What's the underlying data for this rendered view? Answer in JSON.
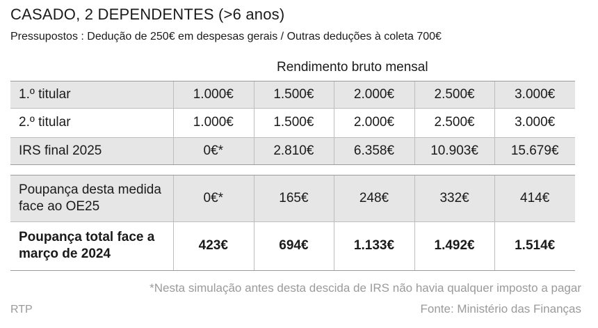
{
  "title": "CASADO, 2 DEPENDENTES (>6 anos)",
  "subtitle": "Pressupostos : Dedução de 250€ em despesas gerais / Outras deduções à coleta 700€",
  "table": {
    "group_header": "Rendimento bruto mensal",
    "rows": [
      {
        "label": "1.º titular",
        "values": [
          "1.000€",
          "1.500€",
          "2.000€",
          "2.500€",
          "3.000€"
        ]
      },
      {
        "label": "2.º titular",
        "values": [
          "1.000€",
          "1.500€",
          "2.000€",
          "2.500€",
          "3.000€"
        ]
      },
      {
        "label": "IRS final 2025",
        "values": [
          "0€*",
          "2.810€",
          "6.358€",
          "10.903€",
          "15.679€"
        ]
      },
      {
        "label": "Poupança desta medida face ao OE25",
        "values": [
          "0€*",
          "165€",
          "248€",
          "332€",
          "414€"
        ]
      },
      {
        "label": "Poupança total face a março de 2024",
        "values": [
          "423€",
          "694€",
          "1.133€",
          "1.492€",
          "1.514€"
        ]
      }
    ]
  },
  "footnote": "*Nesta simulação antes desta descida de IRS não havia qualquer imposto a pagar",
  "credit": "RTP",
  "source": "Fonte: Ministério das Finanças"
}
